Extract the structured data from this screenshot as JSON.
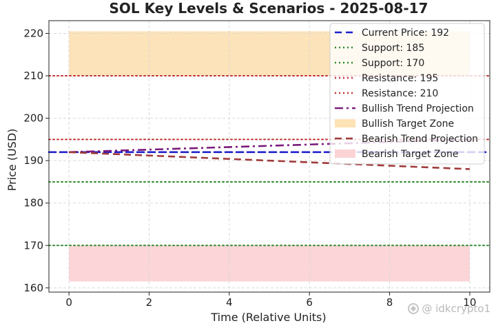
{
  "chart_data": {
    "type": "line",
    "title": "SOL Key Levels & Scenarios - 2025-08-17",
    "xlabel": "Time (Relative Units)",
    "ylabel": "Price (USD)",
    "xlim": [
      -0.5,
      10.5
    ],
    "ylim": [
      159,
      223
    ],
    "xticks": [
      0,
      2,
      4,
      6,
      8,
      10
    ],
    "yticks": [
      160,
      170,
      180,
      190,
      200,
      210,
      220
    ],
    "grid": true,
    "legend_position": "top-right",
    "horizontal_lines": [
      {
        "name": "Current Price: 192",
        "y": 192,
        "color": "#1f1fcc",
        "style": "dashed"
      },
      {
        "name": "Support: 185",
        "y": 185,
        "color": "#2a8a2a",
        "style": "dotted"
      },
      {
        "name": "Support: 170",
        "y": 170,
        "color": "#2a8a2a",
        "style": "dotted"
      },
      {
        "name": "Resistance: 195",
        "y": 195,
        "color": "#c03030",
        "style": "dotted"
      },
      {
        "name": "Resistance: 210",
        "y": 210,
        "color": "#c03030",
        "style": "dotted"
      }
    ],
    "series": [
      {
        "name": "Bullish Trend Projection",
        "x": [
          0,
          10
        ],
        "y": [
          192,
          195
        ],
        "color": "#7b1a7b",
        "style": "dashdot"
      },
      {
        "name": "Bearish Trend Projection",
        "x": [
          0,
          10
        ],
        "y": [
          192,
          188
        ],
        "color": "#a03a3a",
        "style": "dashed"
      }
    ],
    "zones": [
      {
        "name": "Bullish Target Zone",
        "x": [
          0,
          10
        ],
        "y": [
          210,
          220.5
        ],
        "color": "#fde2b5"
      },
      {
        "name": "Bearish Target Zone",
        "x": [
          0,
          10
        ],
        "y": [
          161.5,
          170
        ],
        "color": "#fbd3d6"
      }
    ]
  },
  "watermark": {
    "text": "idkcrypto1",
    "icon": "binance-logo-icon"
  }
}
